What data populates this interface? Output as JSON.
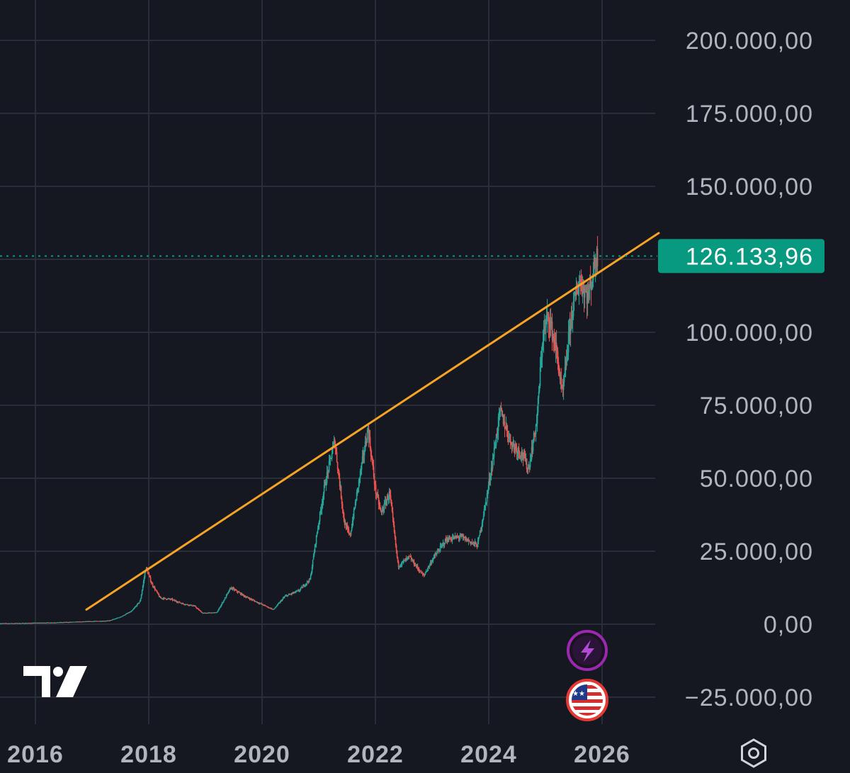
{
  "chart_data": {
    "type": "line",
    "title": "",
    "xlabel": "",
    "ylabel": "",
    "x_ticks": [
      "2016",
      "2018",
      "2020",
      "2022",
      "2024",
      "2026"
    ],
    "y_ticks": [
      "200.000,00",
      "175.000,00",
      "150.000,00",
      "100.000,00",
      "75.000,00",
      "50.000,00",
      "25.000,00",
      "0,00",
      "−25.000,00"
    ],
    "y_tick_values": [
      200000,
      175000,
      150000,
      100000,
      75000,
      50000,
      25000,
      0,
      -25000
    ],
    "xlim": [
      2015.5,
      2027.0
    ],
    "ylim": [
      -30000,
      210000
    ],
    "grid": true,
    "current_price": {
      "value": 126133.96,
      "label": "126.133,96"
    },
    "series": [
      {
        "values": [
          [
            2015.6,
            300
          ],
          [
            2016.0,
            430
          ],
          [
            2016.5,
            650
          ],
          [
            2017.0,
            1000
          ],
          [
            2017.3,
            1200
          ],
          [
            2017.5,
            2500
          ],
          [
            2017.7,
            4500
          ],
          [
            2017.85,
            8000
          ],
          [
            2017.95,
            19500
          ],
          [
            2018.05,
            14000
          ],
          [
            2018.2,
            9000
          ],
          [
            2018.4,
            8500
          ],
          [
            2018.6,
            7000
          ],
          [
            2018.8,
            6300
          ],
          [
            2018.95,
            3800
          ],
          [
            2019.2,
            4000
          ],
          [
            2019.45,
            12500
          ],
          [
            2019.7,
            9500
          ],
          [
            2019.95,
            7200
          ],
          [
            2020.2,
            5000
          ],
          [
            2020.4,
            9500
          ],
          [
            2020.65,
            11500
          ],
          [
            2020.85,
            15500
          ],
          [
            2020.95,
            29000
          ],
          [
            2021.1,
            47000
          ],
          [
            2021.28,
            63000
          ],
          [
            2021.45,
            35000
          ],
          [
            2021.55,
            30000
          ],
          [
            2021.7,
            48000
          ],
          [
            2021.87,
            67000
          ],
          [
            2022.0,
            46000
          ],
          [
            2022.1,
            38000
          ],
          [
            2022.25,
            45000
          ],
          [
            2022.4,
            20000
          ],
          [
            2022.6,
            23000
          ],
          [
            2022.85,
            16500
          ],
          [
            2023.0,
            22000
          ],
          [
            2023.25,
            29000
          ],
          [
            2023.5,
            30000
          ],
          [
            2023.8,
            27000
          ],
          [
            2023.95,
            42000
          ],
          [
            2024.1,
            60000
          ],
          [
            2024.2,
            73000
          ],
          [
            2024.4,
            62000
          ],
          [
            2024.6,
            58000
          ],
          [
            2024.7,
            53000
          ],
          [
            2024.85,
            70000
          ],
          [
            2024.95,
            98000
          ],
          [
            2025.05,
            106000
          ],
          [
            2025.2,
            93000
          ],
          [
            2025.3,
            78000
          ],
          [
            2025.45,
            105000
          ],
          [
            2025.6,
            118000
          ],
          [
            2025.75,
            112000
          ],
          [
            2025.9,
            126000
          ]
        ]
      }
    ],
    "trendline": {
      "color": "#f7a325",
      "start": [
        2016.9,
        5000
      ],
      "end": [
        2027.0,
        134000
      ]
    },
    "colors": {
      "up": "#26a69a",
      "down": "#ef5350",
      "background": "#151821",
      "grid": "#2a2e39",
      "price_tag": "#089981"
    }
  },
  "badges": [
    {
      "name": "lightning-icon",
      "glyph": "⚡",
      "ring": "#9c27b0"
    },
    {
      "name": "us-flag-icon",
      "glyph": "",
      "ring": "#e53935"
    }
  ],
  "logo": "TV",
  "settings_icon": "hexagon-settings-icon"
}
